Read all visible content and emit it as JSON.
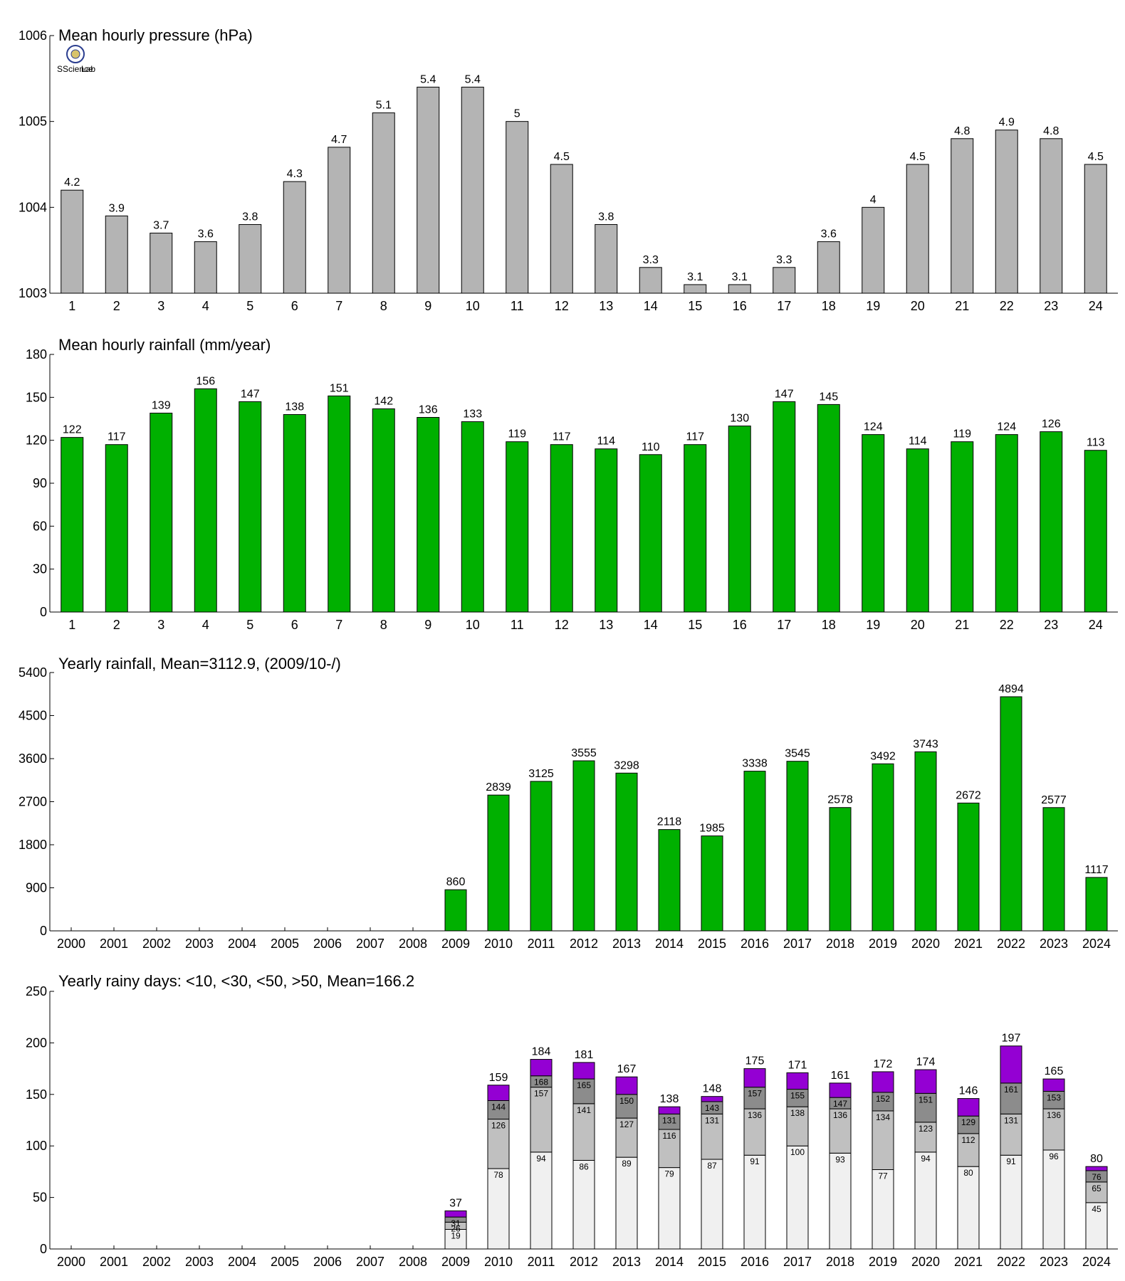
{
  "logo": {
    "text_top": "S",
    "text_mid": "Science",
    "text_right": "Lab"
  },
  "colors": {
    "pressure_bar": "#b4b4b4",
    "rain_bar": "#00b000",
    "days_lt10": "#f0f0f0",
    "days_lt30": "#c0c0c0",
    "days_lt50": "#8c8c8c",
    "days_gt50": "#9400d3"
  },
  "chart_data": [
    {
      "type": "bar",
      "title": "Mean hourly pressure (hPa)",
      "categories": [
        "1",
        "2",
        "3",
        "4",
        "5",
        "6",
        "7",
        "8",
        "9",
        "10",
        "11",
        "12",
        "13",
        "14",
        "15",
        "16",
        "17",
        "18",
        "19",
        "20",
        "21",
        "22",
        "23",
        "24"
      ],
      "values": [
        1004.2,
        1003.9,
        1003.7,
        1003.6,
        1003.8,
        1004.3,
        1004.7,
        1005.1,
        1005.4,
        1005.4,
        1005.0,
        1004.5,
        1003.8,
        1003.3,
        1003.1,
        1003.1,
        1003.3,
        1003.6,
        1004.0,
        1004.5,
        1004.8,
        1004.9,
        1004.8,
        1004.5
      ],
      "labels": [
        "4.2",
        "3.9",
        "3.7",
        "3.6",
        "3.8",
        "4.3",
        "4.7",
        "5.1",
        "5.4",
        "5.4",
        "5",
        "4.5",
        "3.8",
        "3.3",
        "3.1",
        "3.1",
        "3.3",
        "3.6",
        "4",
        "4.5",
        "4.8",
        "4.9",
        "4.8",
        "4.5"
      ],
      "ylim": [
        1003,
        1006
      ],
      "yticks": [
        "1003",
        "1004",
        "1005",
        "1006"
      ],
      "grid": false,
      "xlabel": "",
      "ylabel": ""
    },
    {
      "type": "bar",
      "title": "Mean hourly rainfall (mm/year)",
      "categories": [
        "1",
        "2",
        "3",
        "4",
        "5",
        "6",
        "7",
        "8",
        "9",
        "10",
        "11",
        "12",
        "13",
        "14",
        "15",
        "16",
        "17",
        "18",
        "19",
        "20",
        "21",
        "22",
        "23",
        "24"
      ],
      "values": [
        122,
        117,
        139,
        156,
        147,
        138,
        151,
        142,
        136,
        133,
        119,
        117,
        114,
        110,
        117,
        130,
        147,
        145,
        124,
        114,
        119,
        124,
        126,
        113
      ],
      "labels": [
        "122",
        "117",
        "139",
        "156",
        "147",
        "138",
        "151",
        "142",
        "136",
        "133",
        "119",
        "117",
        "114",
        "110",
        "117",
        "130",
        "147",
        "145",
        "124",
        "114",
        "119",
        "124",
        "126",
        "113"
      ],
      "ylim": [
        0,
        180
      ],
      "yticks": [
        "0",
        "30",
        "60",
        "90",
        "120",
        "150",
        "180"
      ],
      "grid": false,
      "xlabel": "",
      "ylabel": ""
    },
    {
      "type": "bar",
      "title": "Yearly rainfall, Mean=3112.9, (2009/10-/)",
      "categories": [
        "2000",
        "2001",
        "2002",
        "2003",
        "2004",
        "2005",
        "2006",
        "2007",
        "2008",
        "2009",
        "2010",
        "2011",
        "2012",
        "2013",
        "2014",
        "2015",
        "2016",
        "2017",
        "2018",
        "2019",
        "2020",
        "2021",
        "2022",
        "2023",
        "2024"
      ],
      "values": [
        null,
        null,
        null,
        null,
        null,
        null,
        null,
        null,
        null,
        860,
        2839,
        3125,
        3555,
        3298,
        2118,
        1985,
        3338,
        3545,
        2578,
        3492,
        3743,
        2672,
        4894,
        2577,
        1117
      ],
      "labels": [
        "",
        "",
        "",
        "",
        "",
        "",
        "",
        "",
        "",
        "860",
        "2839",
        "3125",
        "3555",
        "3298",
        "2118",
        "1985",
        "3338",
        "3545",
        "2578",
        "3492",
        "3743",
        "2672",
        "4894",
        "2577",
        "1117"
      ],
      "ylim": [
        0,
        5400
      ],
      "yticks": [
        "0",
        "900",
        "1800",
        "2700",
        "3600",
        "4500",
        "5400"
      ],
      "grid": false,
      "xlabel": "",
      "ylabel": ""
    },
    {
      "type": "bar",
      "title": "Yearly rainy days: <10, <30, <50, >50, Mean=166.2",
      "categories": [
        "2000",
        "2001",
        "2002",
        "2003",
        "2004",
        "2005",
        "2006",
        "2007",
        "2008",
        "2009",
        "2010",
        "2011",
        "2012",
        "2013",
        "2014",
        "2015",
        "2016",
        "2017",
        "2018",
        "2019",
        "2020",
        "2021",
        "2022",
        "2023",
        "2024"
      ],
      "stacked": true,
      "cumulative": {
        "lt10": [
          null,
          null,
          null,
          null,
          null,
          null,
          null,
          null,
          null,
          19,
          78,
          94,
          86,
          89,
          79,
          87,
          91,
          100,
          93,
          77,
          94,
          80,
          91,
          96,
          45
        ],
        "lt30": [
          null,
          null,
          null,
          null,
          null,
          null,
          null,
          null,
          null,
          26,
          126,
          157,
          141,
          127,
          116,
          131,
          136,
          138,
          136,
          134,
          123,
          112,
          131,
          136,
          65
        ],
        "lt50": [
          null,
          null,
          null,
          null,
          null,
          null,
          null,
          null,
          null,
          31,
          144,
          168,
          165,
          150,
          131,
          143,
          157,
          155,
          147,
          152,
          151,
          129,
          161,
          153,
          76
        ],
        "total": [
          null,
          null,
          null,
          null,
          null,
          null,
          null,
          null,
          null,
          37,
          159,
          184,
          181,
          167,
          138,
          148,
          175,
          171,
          161,
          172,
          174,
          146,
          197,
          165,
          80
        ]
      },
      "seg_labels": {
        "lt10": [
          "",
          "",
          "",
          "",
          "",
          "",
          "",
          "",
          "",
          "19",
          "78",
          "94",
          "86",
          "89",
          "79",
          "87",
          "91",
          "100",
          "93",
          "77",
          "94",
          "80",
          "91",
          "96",
          "45"
        ],
        "lt30": [
          "",
          "",
          "",
          "",
          "",
          "",
          "",
          "",
          "",
          "26",
          "126",
          "157",
          "141",
          "127",
          "116",
          "131",
          "136",
          "138",
          "136",
          "134",
          "123",
          "112",
          "131",
          "136",
          "65"
        ],
        "lt50": [
          "",
          "",
          "",
          "",
          "",
          "",
          "",
          "",
          "",
          "31",
          "144",
          "168",
          "165",
          "150",
          "131",
          "143",
          "157",
          "155",
          "147",
          "152",
          "151",
          "129",
          "161",
          "153",
          "76"
        ]
      },
      "total_labels": [
        "",
        "",
        "",
        "",
        "",
        "",
        "",
        "",
        "",
        "37",
        "159",
        "184",
        "181",
        "167",
        "138",
        "148",
        "175",
        "171",
        "161",
        "172",
        "174",
        "146",
        "197",
        "165",
        "80"
      ],
      "ylim": [
        0,
        250
      ],
      "yticks": [
        "0",
        "50",
        "100",
        "150",
        "200",
        "250"
      ],
      "grid": false,
      "xlabel": "",
      "ylabel": ""
    }
  ]
}
